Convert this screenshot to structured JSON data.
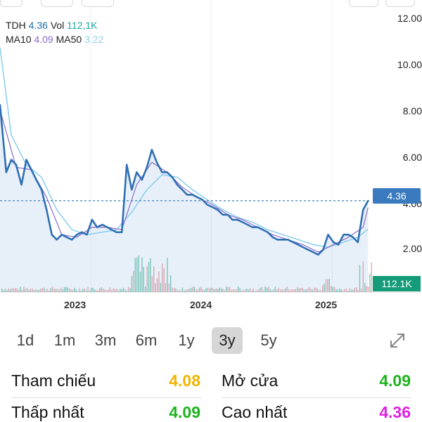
{
  "legend": {
    "symbol": "TDH",
    "price": "4.36",
    "vol_label": "Vol",
    "vol": "112,1K",
    "ma10_label": "MA10",
    "ma10": "4.09",
    "ma50_label": "MA50",
    "ma50": "3.22"
  },
  "badges": {
    "price": "4.36",
    "volume": "112.1K"
  },
  "ranges": {
    "items": [
      "1d",
      "1m",
      "3m",
      "6m",
      "1y",
      "3y",
      "5y"
    ],
    "active": "3y"
  },
  "stats": {
    "ref_label": "Tham chiếu",
    "ref_value": "4.08",
    "open_label": "Mở cửa",
    "open_value": "4.09",
    "low_label": "Thấp nhất",
    "low_value": "4.09",
    "high_label": "Cao nhất",
    "high_value": "4.36"
  },
  "colors": {
    "price_line": "#2f6fb3",
    "ma10": "#8a6cc9",
    "ma50": "#8fd0ee",
    "ref": "#f0b400",
    "up": "#1db31d",
    "high": "#e020e0",
    "vol_up": "#4db89a",
    "vol_down": "#e88a8a"
  },
  "chart_data": {
    "type": "line",
    "y_ticks": [
      "12.00",
      "10.00",
      "8.00",
      "6.00",
      "4.00",
      "2.00"
    ],
    "ylim": [
      0.7,
      12.4
    ],
    "x_ticks": [
      "2023",
      "2024",
      "2025"
    ],
    "x_tick_dates": [
      "2023-01-01",
      "2024-01-01",
      "2025-01-01"
    ],
    "xlim": [
      "2022-04-01",
      "2025-04-30"
    ],
    "last_price": 4.36,
    "series": [
      {
        "name": "TDH",
        "x": [
          "2022-04-01",
          "2022-04-20",
          "2022-05-05",
          "2022-05-20",
          "2022-06-05",
          "2022-06-20",
          "2022-07-05",
          "2022-07-20",
          "2022-08-05",
          "2022-08-20",
          "2022-09-05",
          "2022-09-20",
          "2022-10-05",
          "2022-10-20",
          "2022-11-05",
          "2022-11-20",
          "2022-12-05",
          "2022-12-20",
          "2023-01-05",
          "2023-01-20",
          "2023-02-05",
          "2023-02-20",
          "2023-03-05",
          "2023-03-20",
          "2023-04-05",
          "2023-04-20",
          "2023-05-05",
          "2023-05-20",
          "2023-06-05",
          "2023-06-20",
          "2023-07-05",
          "2023-07-20",
          "2023-08-05",
          "2023-08-20",
          "2023-09-05",
          "2023-09-20",
          "2023-10-05",
          "2023-10-20",
          "2023-11-05",
          "2023-11-20",
          "2023-12-05",
          "2023-12-20",
          "2024-01-05",
          "2024-01-20",
          "2024-02-05",
          "2024-02-20",
          "2024-03-05",
          "2024-03-20",
          "2024-04-05",
          "2024-04-20",
          "2024-05-05",
          "2024-05-20",
          "2024-06-05",
          "2024-06-20",
          "2024-07-05",
          "2024-07-20",
          "2024-08-05",
          "2024-08-20",
          "2024-09-05",
          "2024-09-20",
          "2024-10-05",
          "2024-10-20",
          "2024-11-05",
          "2024-11-20",
          "2024-12-05",
          "2024-12-20",
          "2025-01-05",
          "2025-01-20",
          "2025-02-05",
          "2025-02-20",
          "2025-03-05",
          "2025-03-20",
          "2025-04-05",
          "2025-04-20"
        ],
        "values": [
          8.2,
          5.5,
          6.0,
          5.8,
          5.0,
          6.0,
          5.6,
          5.2,
          4.8,
          4.0,
          3.0,
          2.8,
          3.0,
          2.9,
          2.8,
          3.0,
          3.1,
          3.0,
          3.6,
          3.3,
          3.4,
          3.3,
          3.2,
          3.1,
          3.1,
          5.8,
          4.8,
          5.5,
          5.2,
          5.7,
          6.4,
          5.9,
          5.5,
          5.5,
          5.3,
          5.0,
          4.8,
          4.6,
          4.6,
          4.5,
          4.4,
          4.2,
          4.1,
          4.0,
          3.8,
          3.8,
          3.6,
          3.6,
          3.5,
          3.4,
          3.3,
          3.3,
          3.2,
          3.1,
          2.9,
          2.8,
          2.8,
          2.8,
          2.7,
          2.6,
          2.5,
          2.4,
          2.3,
          2.2,
          2.4,
          3.0,
          2.7,
          2.6,
          3.0,
          3.0,
          2.9,
          2.7,
          4.0,
          4.36
        ]
      },
      {
        "name": "MA10",
        "x": [
          "2022-04-01",
          "2022-05-20",
          "2022-07-05",
          "2022-08-20",
          "2022-10-05",
          "2022-11-20",
          "2023-01-05",
          "2023-02-20",
          "2023-04-05",
          "2023-05-20",
          "2023-07-05",
          "2023-08-20",
          "2023-10-05",
          "2023-11-20",
          "2024-01-05",
          "2024-02-20",
          "2024-04-05",
          "2024-05-20",
          "2024-07-05",
          "2024-08-20",
          "2024-10-05",
          "2024-11-20",
          "2025-01-05",
          "2025-02-20",
          "2025-04-05",
          "2025-04-20"
        ],
        "values": [
          8.0,
          5.7,
          5.6,
          4.5,
          3.0,
          2.9,
          3.3,
          3.3,
          3.2,
          5.0,
          5.9,
          5.5,
          4.9,
          4.5,
          4.2,
          3.8,
          3.6,
          3.3,
          3.0,
          2.8,
          2.6,
          2.3,
          2.6,
          2.9,
          3.3,
          4.09
        ]
      },
      {
        "name": "MA50",
        "x": [
          "2022-04-01",
          "2022-05-05",
          "2022-06-20",
          "2022-08-05",
          "2022-09-20",
          "2022-11-05",
          "2022-12-20",
          "2023-02-05",
          "2023-03-20",
          "2023-05-05",
          "2023-06-20",
          "2023-08-05",
          "2023-09-20",
          "2023-11-05",
          "2023-12-20",
          "2024-02-05",
          "2024-03-20",
          "2024-05-05",
          "2024-06-20",
          "2024-08-05",
          "2024-09-20",
          "2024-11-05",
          "2024-12-20",
          "2025-02-05",
          "2025-03-20",
          "2025-04-20"
        ],
        "values": [
          10.5,
          7.0,
          5.8,
          5.3,
          4.0,
          3.2,
          3.0,
          3.1,
          3.2,
          3.9,
          4.8,
          5.4,
          5.3,
          4.8,
          4.4,
          4.0,
          3.7,
          3.5,
          3.2,
          3.0,
          2.8,
          2.6,
          2.5,
          2.7,
          2.9,
          3.22
        ]
      }
    ]
  }
}
